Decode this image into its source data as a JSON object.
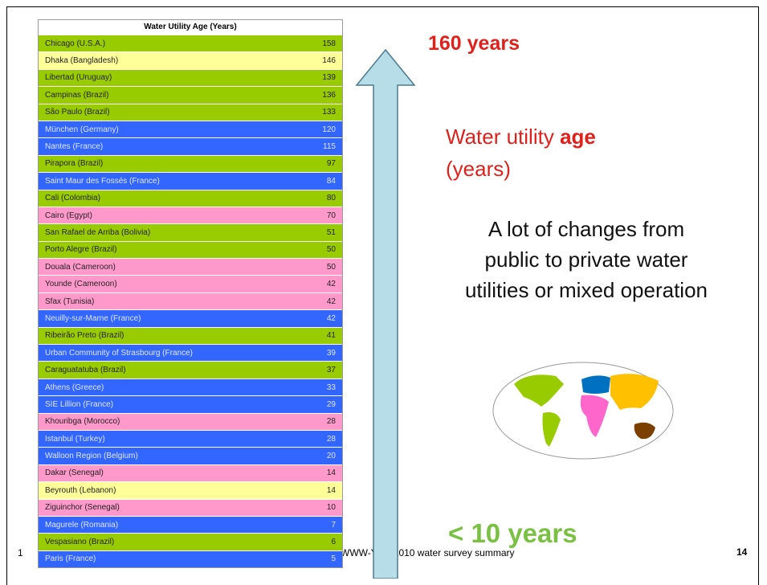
{
  "table": {
    "header": "Water Utility Age (Years)",
    "rows": [
      [
        "Chicago (U.S.A.)",
        "158",
        "green"
      ],
      [
        "Dhaka (Bangladesh)",
        "146",
        "yellow"
      ],
      [
        "Libertad (Uruguay)",
        "139",
        "green"
      ],
      [
        "Campinas (Brazil)",
        "136",
        "green"
      ],
      [
        "São Paulo (Brazil)",
        "133",
        "green"
      ],
      [
        "München (Germany)",
        "120",
        "blue"
      ],
      [
        "Nantes (France)",
        "115",
        "blue"
      ],
      [
        "Pirapora (Brazil)",
        "97",
        "green"
      ],
      [
        "Saint Maur des Fossés (France)",
        "84",
        "blue"
      ],
      [
        "Cali (Colombia)",
        "80",
        "green"
      ],
      [
        "Cairo (Egypt)",
        "70",
        "pink"
      ],
      [
        "San Rafael de Arriba (Bolivia)",
        "51",
        "green"
      ],
      [
        "Porto Alegre (Brazil)",
        "50",
        "green"
      ],
      [
        "Douala (Cameroon)",
        "50",
        "pink"
      ],
      [
        "Younde (Cameroon)",
        "42",
        "pink"
      ],
      [
        "Sfax (Tunisia)",
        "42",
        "pink"
      ],
      [
        "Neuilly-sur-Marne (France)",
        "42",
        "blue"
      ],
      [
        "Ribeirão Preto (Brazil)",
        "41",
        "green"
      ],
      [
        "Urban Community of Strasbourg (France)",
        "39",
        "blue"
      ],
      [
        "Caraguatatuba (Brazil)",
        "37",
        "green"
      ],
      [
        "Athens (Greece)",
        "33",
        "blue"
      ],
      [
        "SIE Lillion (France)",
        "29",
        "blue"
      ],
      [
        "Khouribga (Morocco)",
        "28",
        "pink"
      ],
      [
        "Istanbul (Turkey)",
        "28",
        "blue"
      ],
      [
        "Walloon Region (Belgium)",
        "20",
        "blue"
      ],
      [
        "Dakar (Senegal)",
        "14",
        "pink"
      ],
      [
        "Beyrouth (Lebanon)",
        "14",
        "yellow"
      ],
      [
        "Ziguinchor (Senegal)",
        "10",
        "pink"
      ],
      [
        "Magurele (Romania)",
        "7",
        "blue"
      ],
      [
        "Vespasiano (Brazil)",
        "6",
        "green"
      ],
      [
        "Paris (France)",
        "5",
        "blue"
      ]
    ]
  },
  "top_label": "160 years",
  "heading": {
    "pre": "Water utility",
    "bold": "age",
    "post": "(years)"
  },
  "body": [
    "A lot of changes from",
    "public to private water",
    "utilities or mixed operation"
  ],
  "bottom_label": "< 10 years",
  "footer": {
    "left": "1",
    "center": "WWW-YES-2010 water survey summary",
    "page": "14"
  }
}
